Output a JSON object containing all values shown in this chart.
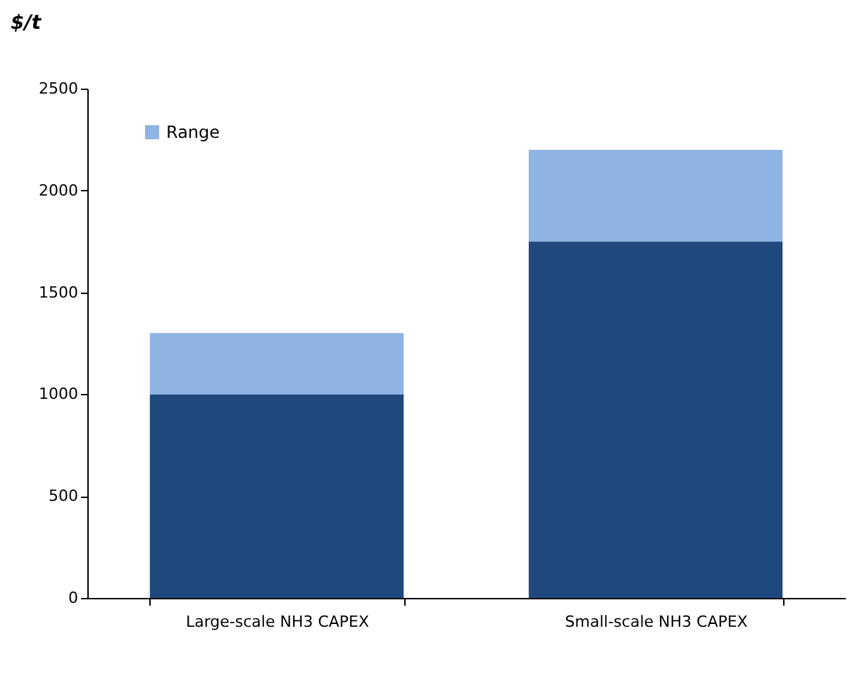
{
  "chart_data": {
    "type": "bar",
    "ylabel": "$/t",
    "categories": [
      "Large-scale NH3 CAPEX",
      "Small-scale NH3 CAPEX"
    ],
    "stacked": true,
    "series": [
      {
        "color": "#1f497d",
        "values": [
          1000,
          1750
        ]
      },
      {
        "name": "Range",
        "color": "#8eb4e3",
        "values": [
          300,
          450
        ]
      }
    ],
    "ylim": [
      0,
      2500
    ],
    "yticks": [
      0,
      500,
      1000,
      1500,
      2000,
      2500
    ],
    "grid": false,
    "legend": "top left"
  }
}
